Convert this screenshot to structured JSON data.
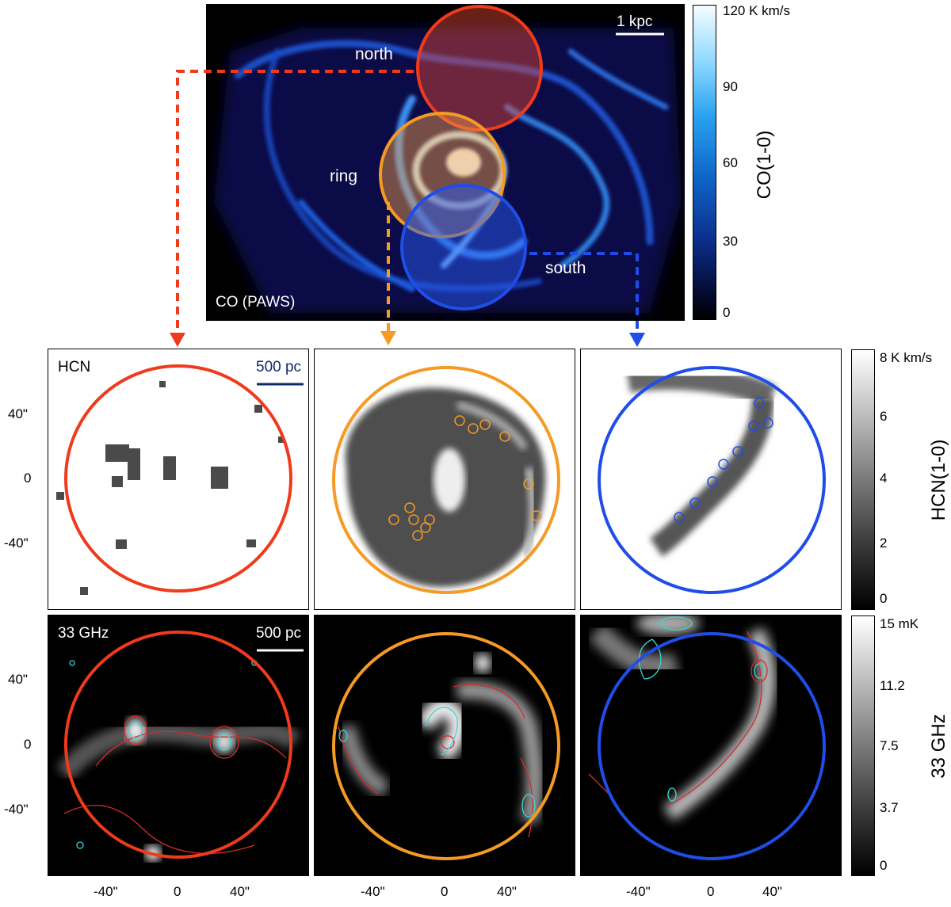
{
  "top_map": {
    "label": "CO (PAWS)",
    "scalebar": "1 kpc",
    "regions": [
      {
        "name": "north",
        "color": "#f03a1c"
      },
      {
        "name": "ring",
        "color": "#f59a24"
      },
      {
        "name": "south",
        "color": "#1f4de8"
      }
    ]
  },
  "co_colorbar": {
    "label": "CO(1-0)",
    "ticks": [
      "120 K km/s",
      "90",
      "60",
      "30",
      "0"
    ]
  },
  "hcn_row": {
    "label": "HCN",
    "scalebar": "500 pc"
  },
  "hcn_colorbar": {
    "label": "HCN(1-0)",
    "ticks": [
      "8 K km/s",
      "6",
      "4",
      "2",
      "0"
    ]
  },
  "ghz_row": {
    "label": "33 GHz",
    "scalebar": "500 pc"
  },
  "ghz_colorbar": {
    "label": "33 GHz",
    "ticks": [
      "15 mK",
      "11.2",
      "7.5",
      "3.7",
      "0"
    ]
  },
  "axes": {
    "y_ticks": [
      "40\"",
      "0",
      "-40\""
    ],
    "x_ticks": [
      "-40\"",
      "0",
      "40\""
    ]
  },
  "colors": {
    "north": "#f03a1c",
    "ring": "#f59a24",
    "south": "#1f4de8",
    "contour_red": "#d42b2b",
    "contour_cyan": "#39d6d6"
  }
}
